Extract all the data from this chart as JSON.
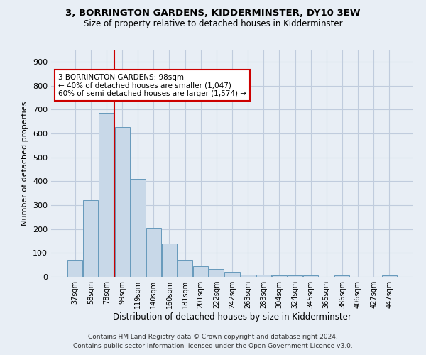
{
  "title": "3, BORRINGTON GARDENS, KIDDERMINSTER, DY10 3EW",
  "subtitle": "Size of property relative to detached houses in Kidderminster",
  "xlabel": "Distribution of detached houses by size in Kidderminster",
  "ylabel": "Number of detached properties",
  "footnote1": "Contains HM Land Registry data © Crown copyright and database right 2024.",
  "footnote2": "Contains public sector information licensed under the Open Government Licence v3.0.",
  "categories": [
    "37sqm",
    "58sqm",
    "78sqm",
    "99sqm",
    "119sqm",
    "140sqm",
    "160sqm",
    "181sqm",
    "201sqm",
    "222sqm",
    "242sqm",
    "263sqm",
    "283sqm",
    "304sqm",
    "324sqm",
    "345sqm",
    "365sqm",
    "386sqm",
    "406sqm",
    "427sqm",
    "447sqm"
  ],
  "values": [
    70,
    320,
    685,
    625,
    410,
    205,
    140,
    70,
    45,
    32,
    20,
    10,
    10,
    5,
    5,
    5,
    0,
    5,
    0,
    0,
    5
  ],
  "bar_color": "#c8d8e8",
  "bar_edge_color": "#6699bb",
  "red_line_index": 2.5,
  "annotation_text": "3 BORRINGTON GARDENS: 98sqm\n← 40% of detached houses are smaller (1,047)\n60% of semi-detached houses are larger (1,574) →",
  "annotation_box_color": "#ffffff",
  "annotation_box_edge": "#cc0000",
  "red_line_color": "#cc0000",
  "grid_color": "#c0ccdd",
  "background_color": "#e8eef5",
  "ylim": [
    0,
    950
  ],
  "yticks": [
    0,
    100,
    200,
    300,
    400,
    500,
    600,
    700,
    800,
    900
  ]
}
